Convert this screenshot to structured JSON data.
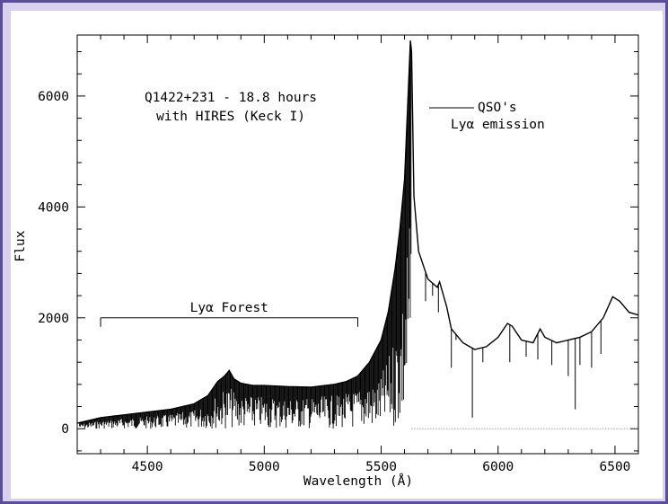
{
  "chart_data": {
    "type": "line",
    "title": "Q1422+231 - 18.8 hours",
    "subtitle": "with HIRES (Keck I)",
    "xlabel": "Wavelength (Å)",
    "ylabel": "Flux",
    "xlim": [
      4200,
      6600
    ],
    "ylim": [
      -450,
      7100
    ],
    "x_ticks": [
      4500,
      5000,
      5500,
      6000,
      6500
    ],
    "y_ticks": [
      0,
      2000,
      4000,
      6000
    ],
    "grid": false,
    "annotations": [
      {
        "text": "Lyα Forest",
        "x_range": [
          4300,
          5400
        ],
        "y": 2000
      },
      {
        "text_line1": "QSO's",
        "text_line2": "Lyα emission",
        "x": 5700,
        "y": 6000
      }
    ],
    "series": [
      {
        "x": [
          4200,
          4300,
          4400,
          4500,
          4600,
          4700,
          4760,
          4800,
          4830,
          4850,
          4870,
          4900,
          4950,
          5000,
          5100,
          5200,
          5300,
          5350,
          5400,
          5450,
          5500,
          5530,
          5560,
          5580,
          5600,
          5615,
          5625,
          5630,
          5640,
          5660,
          5700,
          5740,
          5750,
          5780,
          5800,
          5850,
          5900,
          5950,
          6000,
          6040,
          6060,
          6100,
          6150,
          6180,
          6200,
          6250,
          6300,
          6350,
          6400,
          6450,
          6490,
          6520,
          6560,
          6600
        ],
        "y": [
          100,
          200,
          250,
          300,
          350,
          450,
          600,
          850,
          950,
          1050,
          900,
          820,
          780,
          780,
          760,
          750,
          800,
          850,
          950,
          1200,
          1600,
          2100,
          2900,
          3600,
          4500,
          6000,
          7000,
          6800,
          4200,
          3200,
          2700,
          2550,
          2650,
          2200,
          1800,
          1550,
          1430,
          1480,
          1650,
          1900,
          1850,
          1600,
          1550,
          1800,
          1650,
          1550,
          1600,
          1650,
          1750,
          2000,
          2380,
          2300,
          2100,
          2050
        ]
      }
    ]
  }
}
